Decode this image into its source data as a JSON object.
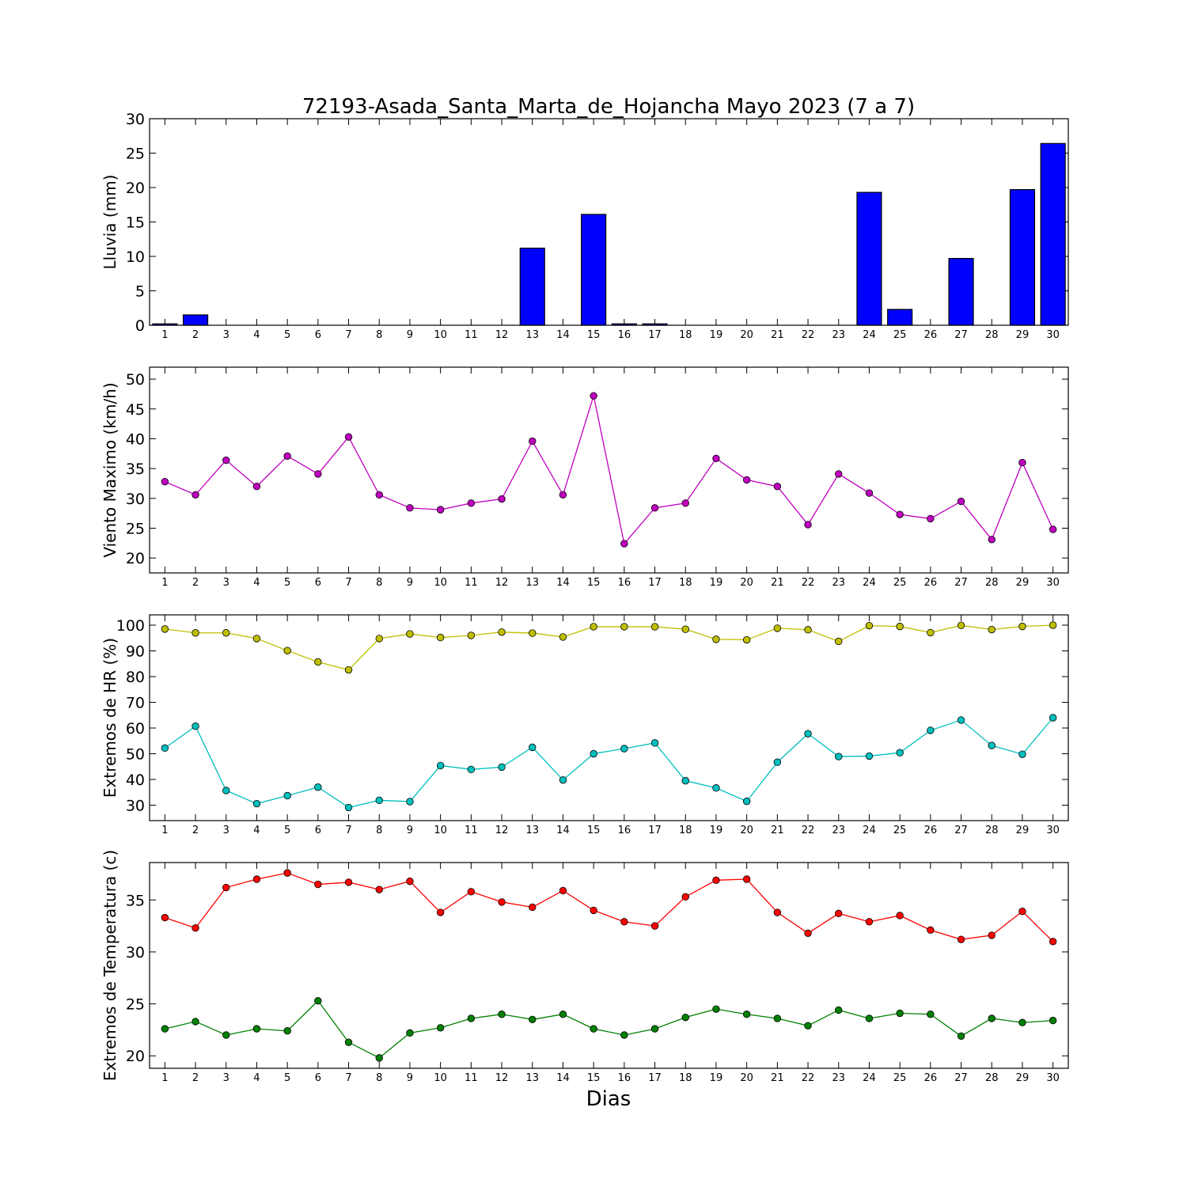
{
  "title": "72193-Asada_Santa_Marta_de_Hojancha Mayo 2023  (7 a 7)",
  "xlabel": "Dias",
  "chart_data": [
    {
      "type": "bar",
      "ylabel": "Lluvia (mm)",
      "ylim": [
        0,
        30
      ],
      "yticks": [
        0,
        5,
        10,
        15,
        20,
        25,
        30
      ],
      "x": [
        1,
        2,
        3,
        4,
        5,
        6,
        7,
        8,
        9,
        10,
        11,
        12,
        13,
        14,
        15,
        16,
        17,
        18,
        19,
        20,
        21,
        22,
        23,
        24,
        25,
        26,
        27,
        28,
        29,
        30
      ],
      "series": [
        {
          "values": [
            0.2,
            1.5,
            0,
            0,
            0,
            0,
            0,
            0,
            0,
            0,
            0,
            0,
            11.2,
            0,
            16.1,
            0.2,
            0.2,
            0,
            0,
            0,
            0,
            0,
            0,
            19.3,
            2.3,
            0,
            9.7,
            0,
            19.7,
            26.4
          ],
          "color": "#0000ff"
        }
      ]
    },
    {
      "type": "line",
      "ylabel": "Viento Maximo (km/h)",
      "ylim": [
        17.5,
        52
      ],
      "yticks": [
        20,
        25,
        30,
        35,
        40,
        45,
        50
      ],
      "x": [
        1,
        2,
        3,
        4,
        5,
        6,
        7,
        8,
        9,
        10,
        11,
        12,
        13,
        14,
        15,
        16,
        17,
        18,
        19,
        20,
        21,
        22,
        23,
        24,
        25,
        26,
        27,
        28,
        29,
        30
      ],
      "series": [
        {
          "values": [
            32.8,
            30.6,
            36.4,
            32.0,
            37.1,
            34.1,
            40.3,
            30.6,
            28.4,
            28.1,
            29.2,
            29.9,
            39.6,
            30.6,
            47.2,
            22.4,
            28.4,
            29.2,
            36.7,
            33.1,
            32.0,
            25.6,
            34.1,
            30.9,
            27.3,
            26.6,
            29.5,
            23.1,
            36.0,
            24.8
          ],
          "color": "#bf00bf"
        }
      ]
    },
    {
      "type": "line",
      "ylabel": "Extremos de HR (%)",
      "ylim": [
        24,
        104
      ],
      "yticks": [
        30,
        40,
        50,
        60,
        70,
        80,
        90,
        100
      ],
      "x": [
        1,
        2,
        3,
        4,
        5,
        6,
        7,
        8,
        9,
        10,
        11,
        12,
        13,
        14,
        15,
        16,
        17,
        18,
        19,
        20,
        21,
        22,
        23,
        24,
        25,
        26,
        27,
        28,
        29,
        30
      ],
      "series": [
        {
          "values": [
            98.5,
            97.0,
            97.0,
            94.8,
            90.1,
            85.7,
            82.6,
            94.8,
            96.6,
            95.2,
            96.0,
            97.3,
            96.9,
            95.4,
            99.4,
            99.4,
            99.4,
            98.4,
            94.5,
            94.3,
            98.8,
            98.2,
            93.7,
            99.8,
            99.5,
            97.1,
            99.9,
            98.3,
            99.5,
            100.0
          ],
          "color": "#bfbf00"
        },
        {
          "values": [
            52.2,
            60.7,
            35.7,
            30.6,
            33.7,
            37.0,
            29.1,
            31.9,
            31.4,
            45.4,
            43.9,
            44.8,
            52.5,
            39.8,
            50.0,
            52.0,
            54.2,
            39.5,
            36.7,
            31.5,
            46.7,
            57.8,
            48.9,
            49.1,
            50.4,
            59.1,
            63.1,
            53.2,
            49.8,
            64.0
          ],
          "color": "#00bfbf"
        }
      ]
    },
    {
      "type": "line",
      "ylabel": "Extremos de Temperatura (c)",
      "ylim": [
        18.8,
        38.6
      ],
      "yticks": [
        20,
        25,
        30,
        35
      ],
      "x": [
        1,
        2,
        3,
        4,
        5,
        6,
        7,
        8,
        9,
        10,
        11,
        12,
        13,
        14,
        15,
        16,
        17,
        18,
        19,
        20,
        21,
        22,
        23,
        24,
        25,
        26,
        27,
        28,
        29,
        30
      ],
      "series": [
        {
          "values": [
            33.3,
            32.3,
            36.2,
            37.0,
            37.6,
            36.5,
            36.7,
            36.0,
            36.8,
            33.8,
            35.8,
            34.8,
            34.3,
            35.9,
            34.0,
            32.9,
            32.5,
            35.3,
            36.9,
            37.0,
            33.8,
            31.8,
            33.7,
            32.9,
            33.5,
            32.1,
            31.2,
            31.6,
            33.9,
            31.0
          ],
          "color": "#ff0000"
        },
        {
          "values": [
            22.6,
            23.3,
            22.0,
            22.6,
            22.4,
            25.3,
            21.3,
            19.8,
            22.2,
            22.7,
            23.6,
            24.0,
            23.5,
            24.0,
            22.6,
            22.0,
            22.6,
            23.7,
            24.5,
            24.0,
            23.6,
            22.9,
            24.4,
            23.6,
            24.1,
            24.0,
            21.9,
            23.6,
            23.2,
            23.4
          ],
          "color": "#008000"
        }
      ]
    }
  ]
}
